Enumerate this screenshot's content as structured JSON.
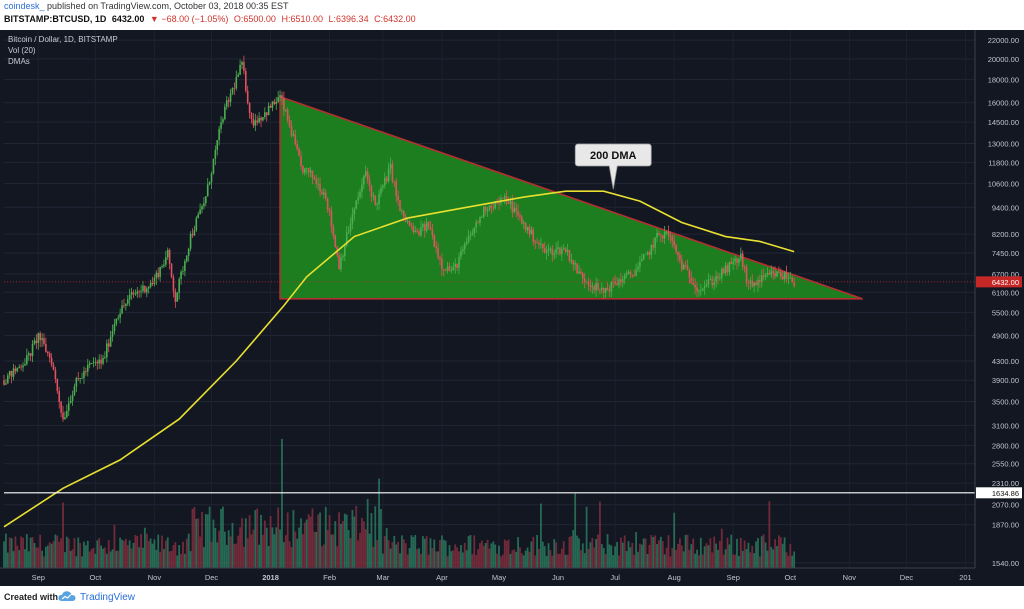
{
  "header": {
    "author": "coindesk_",
    "published": "published on TradingView.com, October 03, 2018 00:35 EST",
    "symbol": "BITSTAMP:BTCUSD, 1D",
    "last": "6432.00",
    "change": "▼ −68.00 (−1.05%)",
    "open": "O:6500.00",
    "high": "H:6510.00",
    "low": "L:6396.34",
    "close": "C:6432.00"
  },
  "legend": {
    "title": "Bitcoin / Dollar, 1D, BITSTAMP",
    "vol": "Vol (20)",
    "dma": "DMAs"
  },
  "callout": "200 DMA",
  "footer": {
    "created": "Created with",
    "brand": "TradingView"
  },
  "colors": {
    "background": "#131722",
    "up": "#4caf50",
    "down": "#e0535f",
    "triangle": "#1e8a1e",
    "triangle_edge": "#b33030",
    "dma": "#e8e030",
    "price_line": "#c62828",
    "vol_line": "#ffffff"
  },
  "chart_data": {
    "type": "candlestick",
    "title": "Bitcoin / Dollar, 1D, BITSTAMP",
    "y_scale": "log",
    "ylim": [
      1500,
      22700
    ],
    "y_ticks": [
      22000,
      20000,
      18000,
      16000,
      14500,
      13000,
      11800,
      10600,
      9400,
      8200,
      7450,
      6700,
      6100,
      5500,
      4900,
      4300,
      3900,
      3500,
      3100,
      2800,
      2550,
      2310,
      2070,
      1870,
      1540
    ],
    "x_ticks": [
      "Sep",
      "Oct",
      "Nov",
      "Dec",
      "2018",
      "Feb",
      "Mar",
      "Apr",
      "May",
      "Jun",
      "Jul",
      "Aug",
      "Sep",
      "Oct",
      "Nov",
      "Dec",
      "201"
    ],
    "x_range": [
      "2017-08-14",
      "2019-01-06"
    ],
    "last_price": 6432.0,
    "last_price_label": "6432.00",
    "volume_marker": 1634.86,
    "volume_marker_label": "1634.86",
    "price_path": [
      [
        "2017-08-14",
        3900
      ],
      [
        "2017-08-20",
        4100
      ],
      [
        "2017-08-27",
        4400
      ],
      [
        "2017-09-01",
        4900
      ],
      [
        "2017-09-08",
        4300
      ],
      [
        "2017-09-14",
        3200
      ],
      [
        "2017-09-20",
        3800
      ],
      [
        "2017-09-28",
        4200
      ],
      [
        "2017-10-05",
        4300
      ],
      [
        "2017-10-12",
        5400
      ],
      [
        "2017-10-20",
        6000
      ],
      [
        "2017-10-31",
        6400
      ],
      [
        "2017-11-08",
        7400
      ],
      [
        "2017-11-12",
        5900
      ],
      [
        "2017-11-20",
        8100
      ],
      [
        "2017-11-28",
        9900
      ],
      [
        "2017-12-07",
        15000
      ],
      [
        "2017-12-17",
        19500
      ],
      [
        "2017-12-22",
        14500
      ],
      [
        "2017-12-28",
        15000
      ],
      [
        "2018-01-06",
        16500
      ],
      [
        "2018-01-12",
        13800
      ],
      [
        "2018-01-17",
        11500
      ],
      [
        "2018-01-23",
        11000
      ],
      [
        "2018-01-30",
        10000
      ],
      [
        "2018-02-06",
        7000
      ],
      [
        "2018-02-12",
        8700
      ],
      [
        "2018-02-20",
        11200
      ],
      [
        "2018-02-25",
        9500
      ],
      [
        "2018-03-05",
        11500
      ],
      [
        "2018-03-10",
        9200
      ],
      [
        "2018-03-18",
        8200
      ],
      [
        "2018-03-25",
        8600
      ],
      [
        "2018-04-01",
        7000
      ],
      [
        "2018-04-07",
        6800
      ],
      [
        "2018-04-15",
        8000
      ],
      [
        "2018-04-24",
        9400
      ],
      [
        "2018-05-05",
        9800
      ],
      [
        "2018-05-15",
        8500
      ],
      [
        "2018-05-25",
        7500
      ],
      [
        "2018-06-05",
        7600
      ],
      [
        "2018-06-12",
        6700
      ],
      [
        "2018-06-24",
        6100
      ],
      [
        "2018-07-01",
        6400
      ],
      [
        "2018-07-10",
        6700
      ],
      [
        "2018-07-18",
        7400
      ],
      [
        "2018-07-24",
        8200
      ],
      [
        "2018-07-29",
        8200
      ],
      [
        "2018-08-05",
        7000
      ],
      [
        "2018-08-14",
        6200
      ],
      [
        "2018-08-22",
        6500
      ],
      [
        "2018-08-31",
        7000
      ],
      [
        "2018-09-05",
        7300
      ],
      [
        "2018-09-09",
        6300
      ],
      [
        "2018-09-16",
        6500
      ],
      [
        "2018-09-22",
        6700
      ],
      [
        "2018-09-30",
        6600
      ],
      [
        "2018-10-03",
        6432
      ]
    ],
    "dma_200": [
      [
        "2017-08-14",
        1850
      ],
      [
        "2017-09-14",
        2250
      ],
      [
        "2017-10-14",
        2600
      ],
      [
        "2017-11-14",
        3200
      ],
      [
        "2017-12-14",
        4300
      ],
      [
        "2018-01-08",
        5700
      ],
      [
        "2018-01-20",
        6600
      ],
      [
        "2018-02-14",
        8100
      ],
      [
        "2018-03-14",
        8900
      ],
      [
        "2018-04-14",
        9400
      ],
      [
        "2018-05-14",
        9900
      ],
      [
        "2018-06-05",
        10200
      ],
      [
        "2018-06-25",
        10200
      ],
      [
        "2018-07-14",
        9700
      ],
      [
        "2018-08-05",
        8700
      ],
      [
        "2018-08-28",
        8100
      ],
      [
        "2018-09-15",
        7900
      ],
      [
        "2018-10-03",
        7500
      ]
    ],
    "triangle": [
      [
        "2018-01-06",
        16500
      ],
      [
        "2018-11-08",
        5900
      ],
      [
        "2018-01-06",
        5900
      ]
    ],
    "volume_ylim": [
      0,
      3000
    ]
  }
}
